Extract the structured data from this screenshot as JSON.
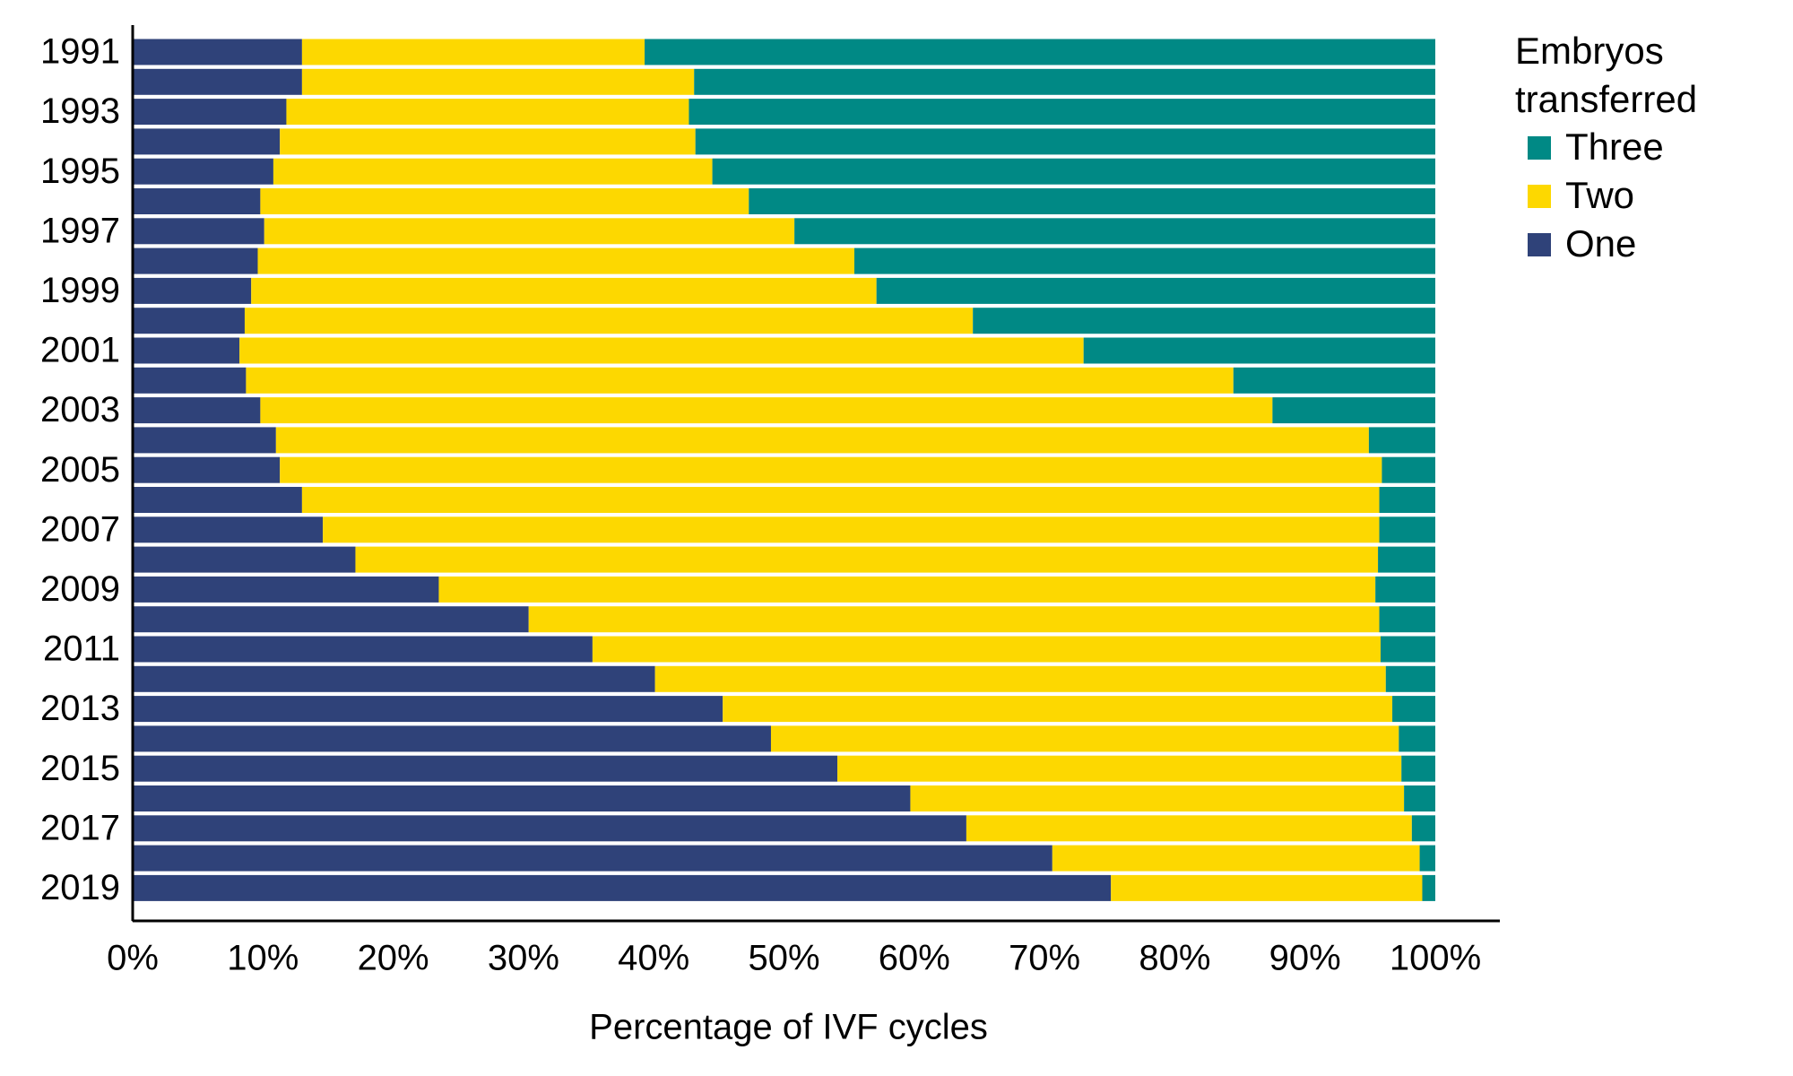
{
  "chart_data": {
    "type": "stacked-bar-horizontal",
    "x_label": "Percentage of IVF cycles",
    "legend_title": "Embryos transferred",
    "legend_position": "right",
    "categories": [
      "1991",
      null,
      "1993",
      null,
      "1995",
      null,
      "1997",
      null,
      "1999",
      null,
      "2001",
      null,
      "2003",
      null,
      "2005",
      null,
      "2007",
      null,
      "2009",
      null,
      "2011",
      null,
      "2013",
      null,
      "2015",
      null,
      "2017",
      null,
      "2019"
    ],
    "series": [
      {
        "name": "One",
        "color": "#2f4279",
        "values": [
          13.0,
          13.0,
          11.8,
          11.3,
          10.8,
          9.8,
          10.1,
          9.6,
          9.1,
          8.6,
          8.2,
          8.7,
          9.8,
          11.0,
          11.3,
          13.0,
          14.6,
          17.1,
          23.5,
          30.4,
          35.3,
          40.1,
          45.3,
          49.0,
          54.1,
          59.7,
          64.0,
          70.6,
          75.1
        ]
      },
      {
        "name": "Two",
        "color": "#fdd800",
        "values": [
          26.3,
          30.1,
          30.9,
          31.9,
          33.7,
          37.5,
          40.7,
          45.8,
          48.0,
          55.9,
          64.8,
          75.8,
          77.7,
          83.9,
          84.6,
          82.7,
          81.1,
          78.5,
          71.9,
          65.3,
          60.5,
          56.1,
          51.4,
          48.2,
          43.3,
          37.9,
          34.2,
          28.2,
          23.9
        ]
      },
      {
        "name": "Three",
        "color": "#008985",
        "values": [
          60.7,
          56.9,
          57.3,
          56.8,
          55.5,
          52.7,
          49.2,
          44.6,
          42.9,
          35.5,
          27.0,
          15.5,
          12.5,
          5.1,
          4.1,
          4.3,
          4.3,
          4.4,
          4.6,
          4.3,
          4.2,
          3.8,
          3.3,
          2.8,
          2.6,
          2.4,
          1.8,
          1.2,
          1.0
        ]
      }
    ],
    "xlim": [
      0,
      100
    ],
    "xticks": [
      {
        "value": 0,
        "label": "0%"
      },
      {
        "value": 10,
        "label": "10%"
      },
      {
        "value": 20,
        "label": "20%"
      },
      {
        "value": 30,
        "label": "30%"
      },
      {
        "value": 40,
        "label": "40%"
      },
      {
        "value": 50,
        "label": "50%"
      },
      {
        "value": 60,
        "label": "60%"
      },
      {
        "value": 70,
        "label": "70%"
      },
      {
        "value": 80,
        "label": "80%"
      },
      {
        "value": 90,
        "label": "90%"
      },
      {
        "value": 100,
        "label": "100%"
      }
    ]
  }
}
